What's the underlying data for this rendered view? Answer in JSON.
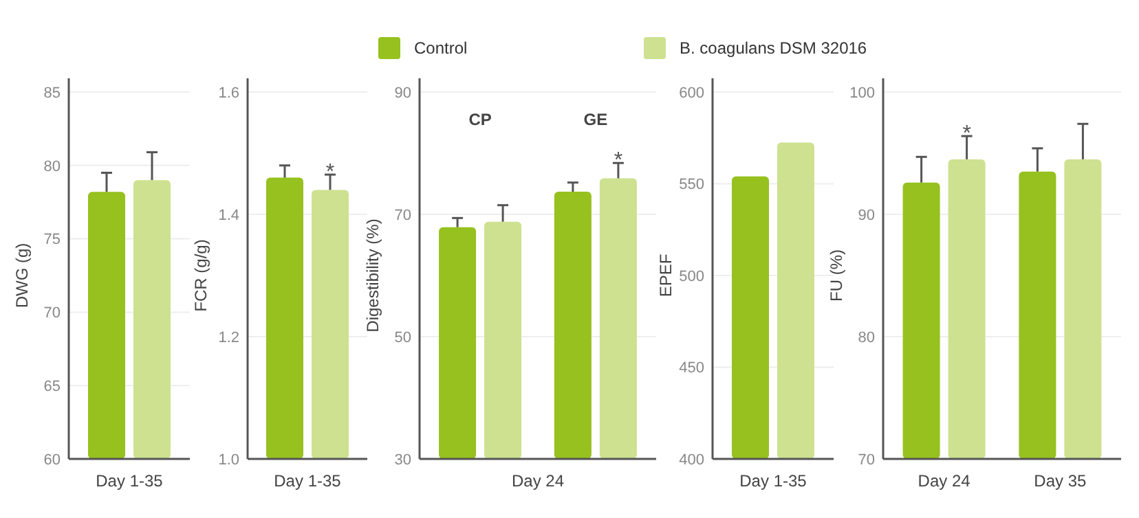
{
  "chart_data": [
    {
      "type": "bar",
      "categories": [
        "Day 1-35"
      ],
      "ylabel": "DWG (g)",
      "ylim": [
        60,
        85
      ],
      "yticks": [
        60,
        65,
        70,
        75,
        80,
        85
      ],
      "grid": "y",
      "legend": "top",
      "series": [
        {
          "name": "Control",
          "color": "#96c11f",
          "values": [
            78.2
          ],
          "errors": [
            1.3
          ]
        },
        {
          "name": "B. coagulans DSM 32016",
          "color": "#cde190",
          "values": [
            79.0
          ],
          "errors": [
            1.9
          ]
        }
      ]
    },
    {
      "type": "bar",
      "categories": [
        "Day 1-35"
      ],
      "ylabel": "FCR (g/g)",
      "ylim": [
        1.0,
        1.6
      ],
      "yticks": [
        {
          "value": 1.0,
          "label": "1.0"
        },
        1.2,
        1.4,
        1.6
      ],
      "grid": "y",
      "annotations": [
        {
          "text": "*",
          "x": "Day 1-35",
          "y": 1.44
        }
      ],
      "series": [
        {
          "color": "#96c11f",
          "values": [
            1.46
          ],
          "errors": [
            0.02
          ]
        },
        {
          "color": "#cde190",
          "values": [
            1.44
          ],
          "errors": [
            0.025
          ]
        }
      ]
    },
    {
      "type": "bar",
      "categories": [
        "CP",
        "GE"
      ],
      "xlabel": "Day 24",
      "ylabel": "Digestibility (%)",
      "ylim": [
        30,
        90
      ],
      "yticks": [
        30,
        50,
        70,
        90
      ],
      "grid": "y",
      "annotations": [
        {
          "text": "*",
          "x": "GE",
          "y": 75.9
        }
      ],
      "series": [
        {
          "color": "#96c11f",
          "values": [
            67.9,
            73.7
          ],
          "errors": [
            1.5,
            1.5
          ]
        },
        {
          "color": "#cde190",
          "values": [
            68.8,
            75.9
          ],
          "errors": [
            2.7,
            2.5
          ]
        }
      ]
    },
    {
      "type": "bar",
      "categories": [
        "Day 1-35"
      ],
      "ylabel": "EPEF",
      "ylim": [
        400,
        600
      ],
      "yticks": [
        400,
        450,
        500,
        550,
        600
      ],
      "grid": "y",
      "series": [
        {
          "color": "#96c11f",
          "values": [
            554
          ]
        },
        {
          "color": "#cde190",
          "values": [
            572.5
          ]
        }
      ]
    },
    {
      "type": "bar",
      "categories": [
        "Day 24",
        "Day 35"
      ],
      "ylabel": "FU (%)",
      "ylim": [
        70,
        100
      ],
      "yticks": [
        70,
        80,
        90,
        100
      ],
      "grid": "y",
      "annotations": [
        {
          "text": "*",
          "x": "Day 24",
          "y": 94.5
        }
      ],
      "series": [
        {
          "color": "#96c11f",
          "values": [
            92.6,
            93.5
          ],
          "errors": [
            2.1,
            1.9
          ]
        },
        {
          "color": "#cde190",
          "values": [
            94.5,
            94.5
          ],
          "errors": [
            1.9,
            2.9
          ]
        }
      ]
    }
  ]
}
